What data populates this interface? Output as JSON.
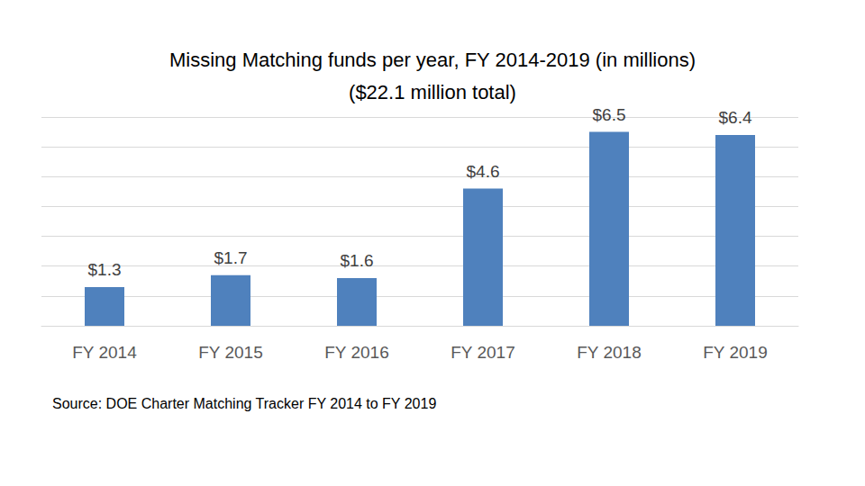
{
  "chart_data": {
    "type": "bar",
    "title": "Missing Matching funds per year, FY 2014-2019 (in millions)",
    "subtitle": "($22.1 million total)",
    "annotations": [
      "Source: DOE Charter Matching Tracker FY 2014 to FY 2019"
    ],
    "categories": [
      "FY 2014",
      "FY 2015",
      "FY 2016",
      "FY 2017",
      "FY 2018",
      "FY 2019"
    ],
    "values": [
      1.3,
      1.7,
      1.6,
      4.6,
      6.5,
      6.4
    ],
    "value_labels": [
      "$1.3",
      "$1.7",
      "$1.6",
      "$4.6",
      "$6.5",
      "$6.4"
    ],
    "color": "#4f81bd",
    "ylim": [
      0,
      7
    ],
    "yticks": [
      0,
      1,
      2,
      3,
      4,
      5,
      6,
      7
    ],
    "grid": true,
    "data_labels": true,
    "tick_labels": "x"
  }
}
